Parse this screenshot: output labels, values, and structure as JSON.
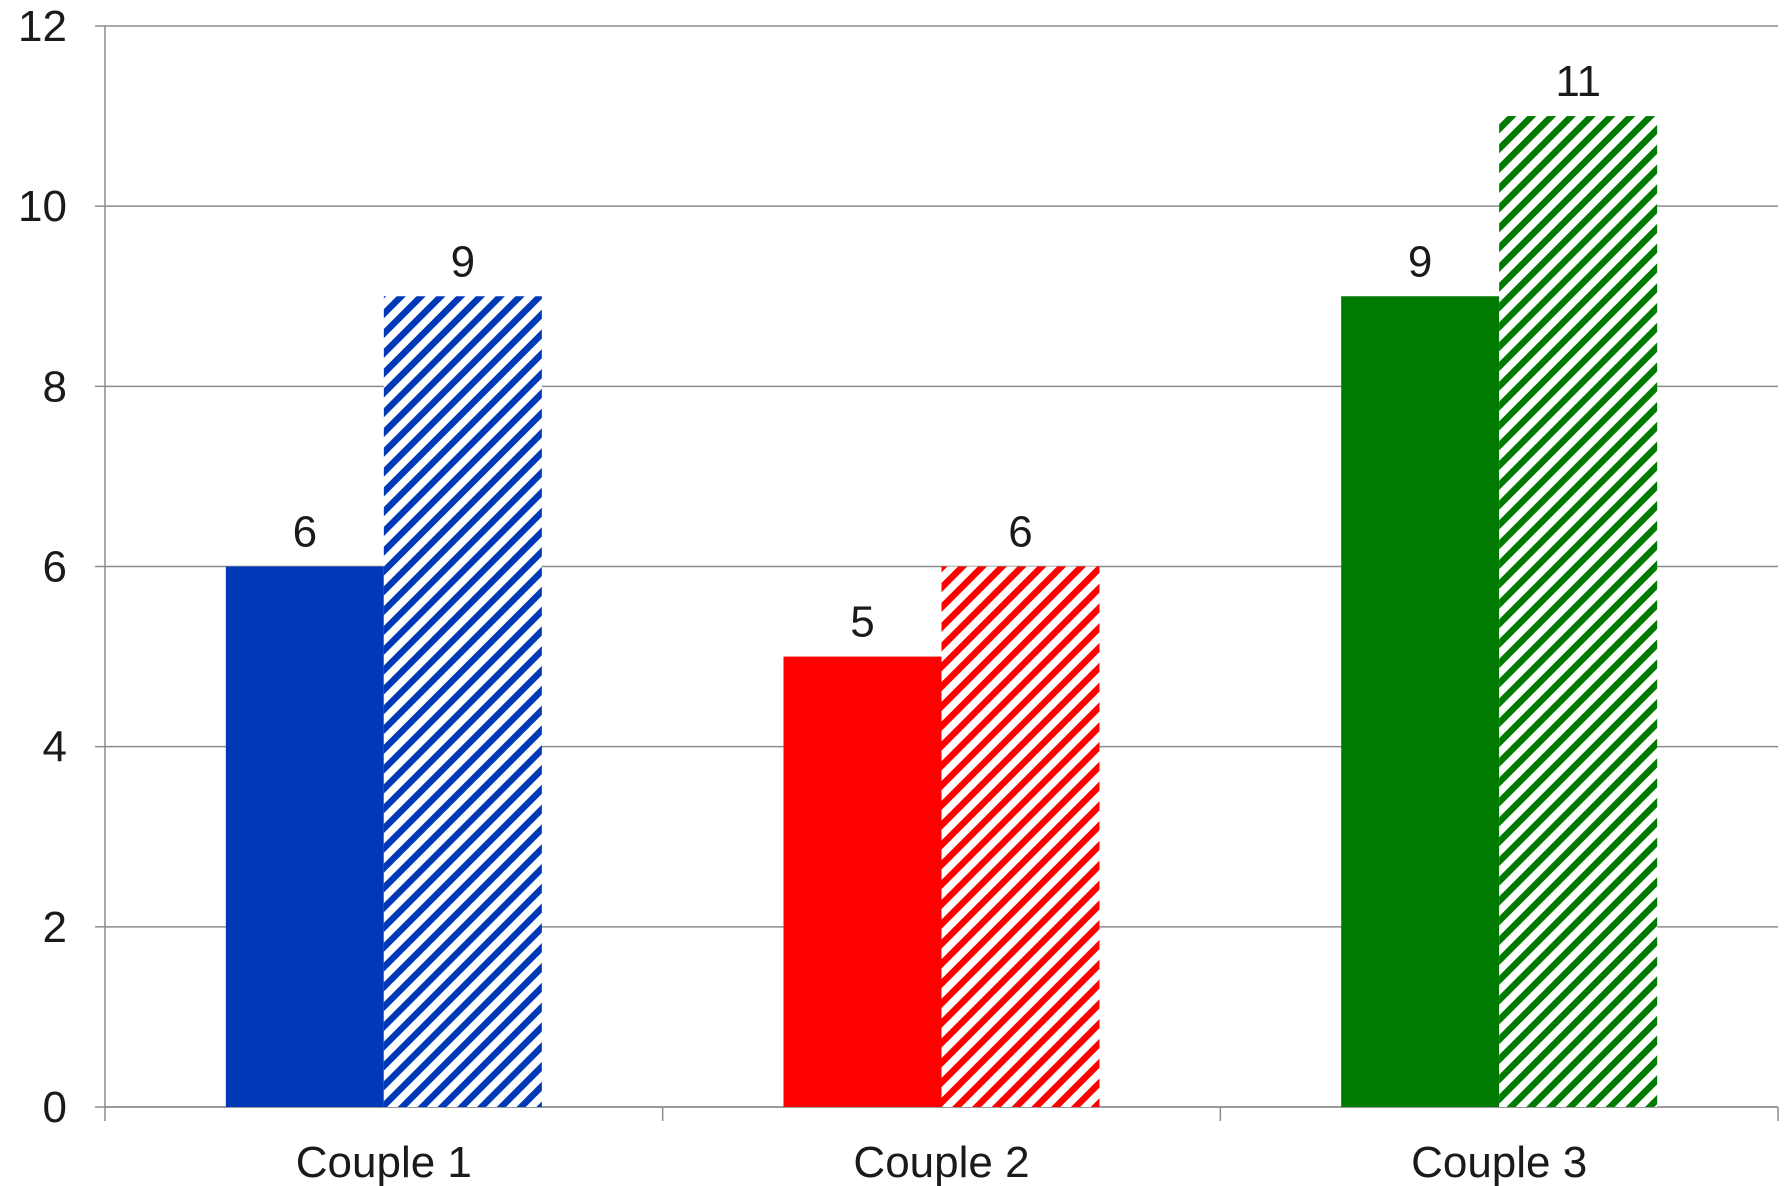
{
  "chart_data": {
    "type": "bar",
    "categories": [
      "Couple 1",
      "Couple 2",
      "Couple 3"
    ],
    "series": [
      {
        "style": "solid",
        "values": [
          6,
          5,
          9
        ]
      },
      {
        "style": "hatched",
        "values": [
          9,
          6,
          11
        ]
      }
    ],
    "category_colors": [
      "#0039b8",
      "#ff0000",
      "#007a00"
    ],
    "ylim": [
      0,
      12
    ],
    "yticks": [
      0,
      2,
      4,
      6,
      8,
      10,
      12
    ],
    "grid": true,
    "legend": "none",
    "data_labels": true,
    "title": "",
    "xlabel": "",
    "ylabel": ""
  }
}
